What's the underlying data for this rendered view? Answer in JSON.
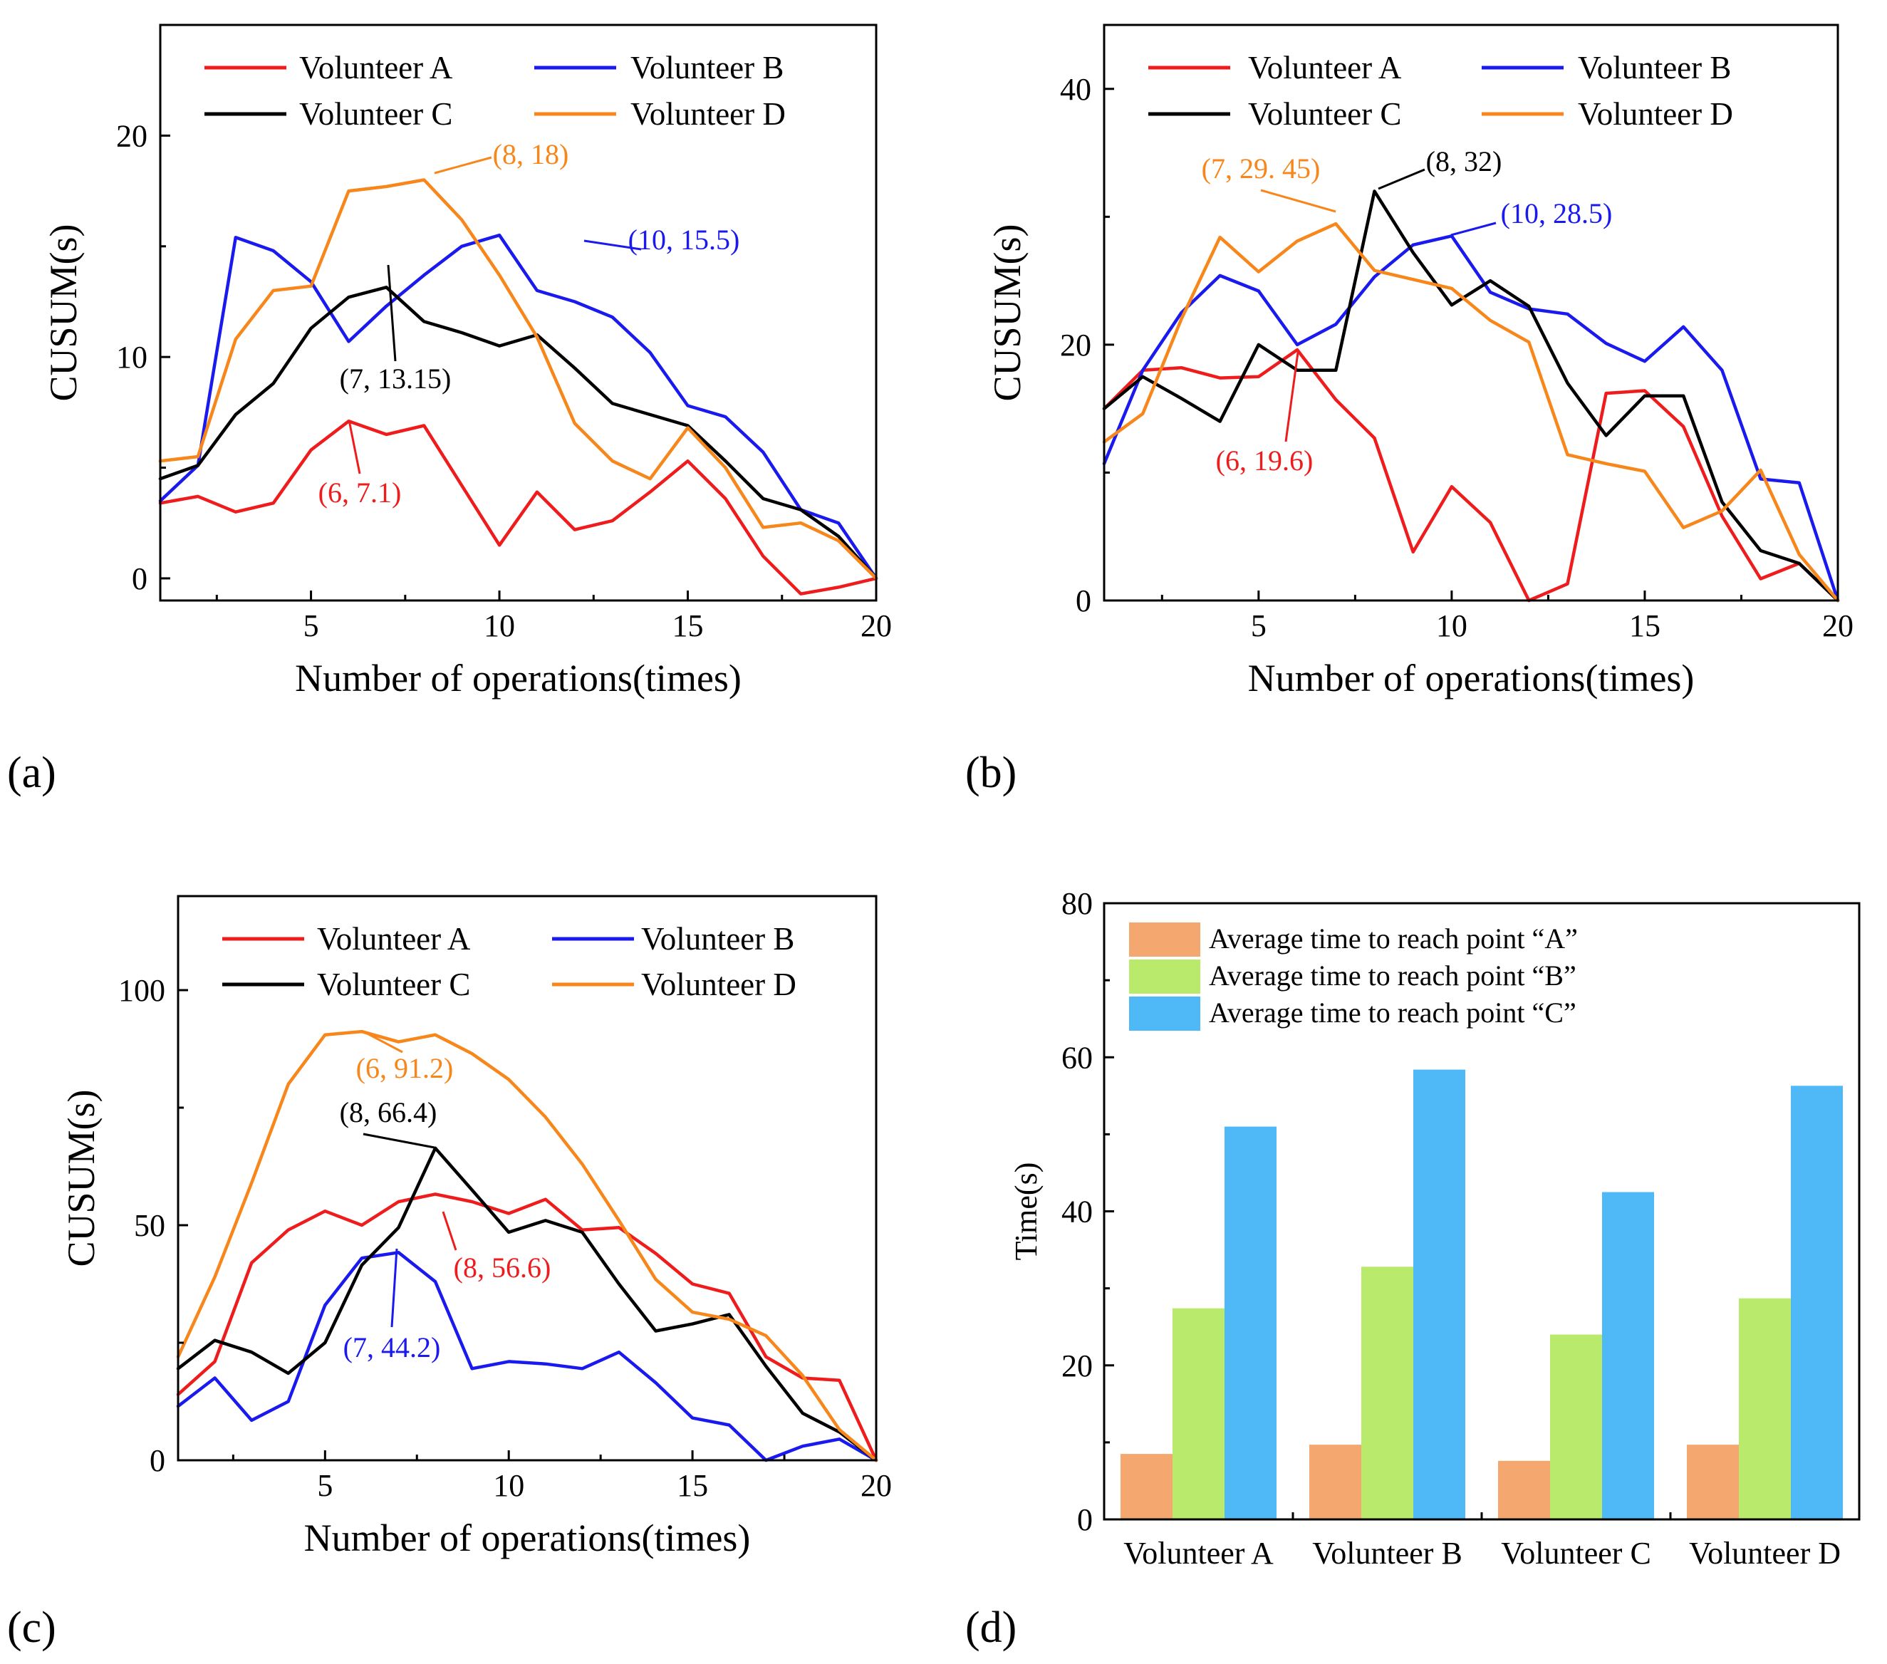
{
  "colors": {
    "volunteer_a": "#ee1c1c",
    "volunteer_b": "#1a1aee",
    "volunteer_c": "#000000",
    "volunteer_d": "#f7861b",
    "bar_a": "#f4a870",
    "bar_b": "#b9ea6c",
    "bar_c": "#4fb9f7",
    "axis": "#000000"
  },
  "chart_data": [
    {
      "id": "a",
      "panel_label": "(a)",
      "type": "line",
      "xlabel": "Number of operations(times)",
      "ylabel": "CUSUM(s)",
      "xlim": [
        1,
        20
      ],
      "ylim": [
        -1,
        25
      ],
      "xticks": [
        5,
        10,
        15,
        20
      ],
      "yticks": [
        0,
        10,
        20
      ],
      "legend": [
        "Volunteer A",
        "Volunteer B",
        "Volunteer C",
        "Volunteer D"
      ],
      "x": [
        1,
        2,
        3,
        4,
        5,
        6,
        7,
        8,
        9,
        10,
        11,
        12,
        13,
        14,
        15,
        16,
        17,
        18,
        19,
        20
      ],
      "series": [
        {
          "name": "Volunteer A",
          "color_key": "volunteer_a",
          "values": [
            3.4,
            3.7,
            3.0,
            3.4,
            5.8,
            7.1,
            6.5,
            6.9,
            4.2,
            1.5,
            3.9,
            2.2,
            2.6,
            3.9,
            5.3,
            3.6,
            1.0,
            -0.7,
            -0.4,
            0.0
          ]
        },
        {
          "name": "Volunteer B",
          "color_key": "volunteer_b",
          "values": [
            3.5,
            5.1,
            15.4,
            14.8,
            13.4,
            10.7,
            12.3,
            13.7,
            15.0,
            15.5,
            13.0,
            12.5,
            11.8,
            10.2,
            7.8,
            7.3,
            5.7,
            3.1,
            2.5,
            0.0
          ]
        },
        {
          "name": "Volunteer C",
          "color_key": "volunteer_c",
          "values": [
            4.5,
            5.1,
            7.4,
            8.8,
            11.3,
            12.7,
            13.15,
            11.6,
            11.1,
            10.5,
            11.0,
            9.5,
            7.9,
            7.4,
            6.9,
            5.3,
            3.6,
            3.1,
            1.9,
            0.0
          ]
        },
        {
          "name": "Volunteer D",
          "color_key": "volunteer_d",
          "values": [
            5.3,
            5.5,
            10.8,
            13.0,
            13.2,
            17.5,
            17.7,
            18.0,
            16.2,
            13.7,
            10.9,
            7.0,
            5.3,
            4.5,
            6.8,
            5.0,
            2.3,
            2.5,
            1.7,
            0.0
          ]
        }
      ],
      "annotations": [
        {
          "text": "(8, 18)",
          "color_key": "volunteer_d",
          "point": [
            8,
            18
          ]
        },
        {
          "text": "(10, 15.5)",
          "color_key": "volunteer_b",
          "point": [
            10,
            15.5
          ]
        },
        {
          "text": "(7, 13.15)",
          "color_key": "volunteer_c",
          "point": [
            7,
            13.15
          ]
        },
        {
          "text": "(6, 7.1)",
          "color_key": "volunteer_a",
          "point": [
            6,
            7.1
          ]
        }
      ]
    },
    {
      "id": "b",
      "panel_label": "(b)",
      "type": "line",
      "xlabel": "Number of operations(times)",
      "ylabel": "CUSUM(s)",
      "xlim": [
        1,
        20
      ],
      "ylim": [
        0,
        45
      ],
      "xticks": [
        5,
        10,
        15,
        20
      ],
      "yticks": [
        0,
        20,
        40
      ],
      "legend": [
        "Volunteer A",
        "Volunteer B",
        "Volunteer C",
        "Volunteer D"
      ],
      "x": [
        1,
        2,
        3,
        4,
        5,
        6,
        7,
        8,
        9,
        10,
        11,
        12,
        13,
        14,
        15,
        16,
        17,
        18,
        19,
        20
      ],
      "series": [
        {
          "name": "Volunteer A",
          "color_key": "volunteer_a",
          "values": [
            15.0,
            18.0,
            18.2,
            17.4,
            17.5,
            19.6,
            15.7,
            12.7,
            3.8,
            8.9,
            6.1,
            0.0,
            1.3,
            16.2,
            16.4,
            13.6,
            6.6,
            1.7,
            2.9,
            0.0
          ]
        },
        {
          "name": "Volunteer B",
          "color_key": "volunteer_b",
          "values": [
            10.7,
            18.0,
            22.5,
            25.4,
            24.2,
            20.0,
            21.6,
            25.3,
            27.8,
            28.5,
            24.1,
            22.8,
            22.4,
            20.1,
            18.7,
            21.4,
            18.0,
            9.5,
            9.2,
            0.0
          ]
        },
        {
          "name": "Volunteer C",
          "color_key": "volunteer_c",
          "values": [
            15.0,
            17.5,
            15.8,
            14.0,
            20.0,
            18.0,
            18.0,
            32.0,
            27.2,
            23.1,
            25.0,
            23.0,
            17.0,
            12.9,
            16.0,
            16.0,
            7.7,
            3.9,
            2.9,
            0.0
          ]
        },
        {
          "name": "Volunteer D",
          "color_key": "volunteer_d",
          "values": [
            12.4,
            14.6,
            22.0,
            28.4,
            25.7,
            28.1,
            29.45,
            25.8,
            25.1,
            24.4,
            21.9,
            20.2,
            11.4,
            10.7,
            10.1,
            5.7,
            7.0,
            10.2,
            3.6,
            0.0
          ]
        }
      ],
      "annotations": [
        {
          "text": "(7,   29. 45)",
          "color_key": "volunteer_d",
          "point": [
            7,
            29.45
          ]
        },
        {
          "text": "(8, 32)",
          "color_key": "volunteer_c",
          "point": [
            8,
            32
          ]
        },
        {
          "text": "(10, 28.5)",
          "color_key": "volunteer_b",
          "point": [
            10,
            28.5
          ]
        },
        {
          "text": "(6, 19.6)",
          "color_key": "volunteer_a",
          "point": [
            6,
            19.6
          ]
        }
      ]
    },
    {
      "id": "c",
      "panel_label": "(c)",
      "type": "line",
      "xlabel": "Number of operations(times)",
      "ylabel": "CUSUM(s)",
      "xlim": [
        1,
        20
      ],
      "ylim": [
        0,
        120
      ],
      "xticks": [
        5,
        10,
        15,
        20
      ],
      "yticks": [
        0,
        50,
        100
      ],
      "legend": [
        "Volunteer A",
        "Volunteer B",
        "Volunteer C",
        "Volunteer D"
      ],
      "x": [
        1,
        2,
        3,
        4,
        5,
        6,
        7,
        8,
        9,
        10,
        11,
        12,
        13,
        14,
        15,
        16,
        17,
        18,
        19,
        20
      ],
      "series": [
        {
          "name": "Volunteer A",
          "color_key": "volunteer_a",
          "values": [
            14.0,
            21.0,
            42.0,
            49.0,
            53.0,
            50.0,
            55.0,
            56.6,
            55.0,
            52.5,
            55.5,
            49.0,
            49.5,
            44.0,
            37.5,
            35.5,
            22.0,
            17.5,
            17.0,
            0.0
          ]
        },
        {
          "name": "Volunteer B",
          "color_key": "volunteer_b",
          "values": [
            11.5,
            17.5,
            8.5,
            12.5,
            33.0,
            43.0,
            44.2,
            38.0,
            19.5,
            21.0,
            20.5,
            19.5,
            23.0,
            16.5,
            9.0,
            7.5,
            0.0,
            3.0,
            4.5,
            0.0
          ]
        },
        {
          "name": "Volunteer C",
          "color_key": "volunteer_c",
          "values": [
            19.5,
            25.5,
            23.0,
            18.5,
            25.0,
            41.5,
            49.5,
            66.4,
            57.5,
            48.5,
            51.0,
            48.5,
            37.5,
            27.5,
            29.0,
            31.0,
            20.0,
            10.0,
            6.0,
            0.0
          ]
        },
        {
          "name": "Volunteer D",
          "color_key": "volunteer_d",
          "values": [
            22.0,
            39.0,
            59.0,
            80.0,
            90.5,
            91.2,
            89.0,
            90.5,
            86.5,
            81.0,
            73.0,
            63.0,
            51.0,
            38.5,
            31.5,
            30.0,
            26.5,
            18.0,
            6.5,
            0.0
          ]
        }
      ],
      "annotations": [
        {
          "text": "(6, 91.2)",
          "color_key": "volunteer_d",
          "point": [
            6,
            91.2
          ]
        },
        {
          "text": "(8, 66.4)",
          "color_key": "volunteer_c",
          "point": [
            8,
            66.4
          ]
        },
        {
          "text": "(8, 56.6)",
          "color_key": "volunteer_a",
          "point": [
            8,
            56.6
          ]
        },
        {
          "text": "(7, 44.2)",
          "color_key": "volunteer_b",
          "point": [
            7,
            44.2
          ]
        }
      ]
    },
    {
      "id": "d",
      "panel_label": "(d)",
      "type": "bar",
      "xlabel": "",
      "ylabel": "Time(s)",
      "ylim": [
        0,
        80
      ],
      "yticks": [
        0,
        20,
        40,
        60,
        80
      ],
      "categories": [
        "Volunteer A",
        "Volunteer B",
        "Volunteer C",
        "Volunteer D"
      ],
      "series": [
        {
          "name": "Average time to reach point “A”",
          "color_key": "bar_a",
          "values": [
            8.5,
            9.7,
            7.6,
            9.7
          ]
        },
        {
          "name": "Average time to reach point “B”",
          "color_key": "bar_b",
          "values": [
            27.4,
            32.8,
            24.0,
            28.7
          ]
        },
        {
          "name": "Average time to reach point “C”",
          "color_key": "bar_c",
          "values": [
            51.0,
            58.4,
            42.5,
            56.3
          ]
        }
      ]
    }
  ]
}
